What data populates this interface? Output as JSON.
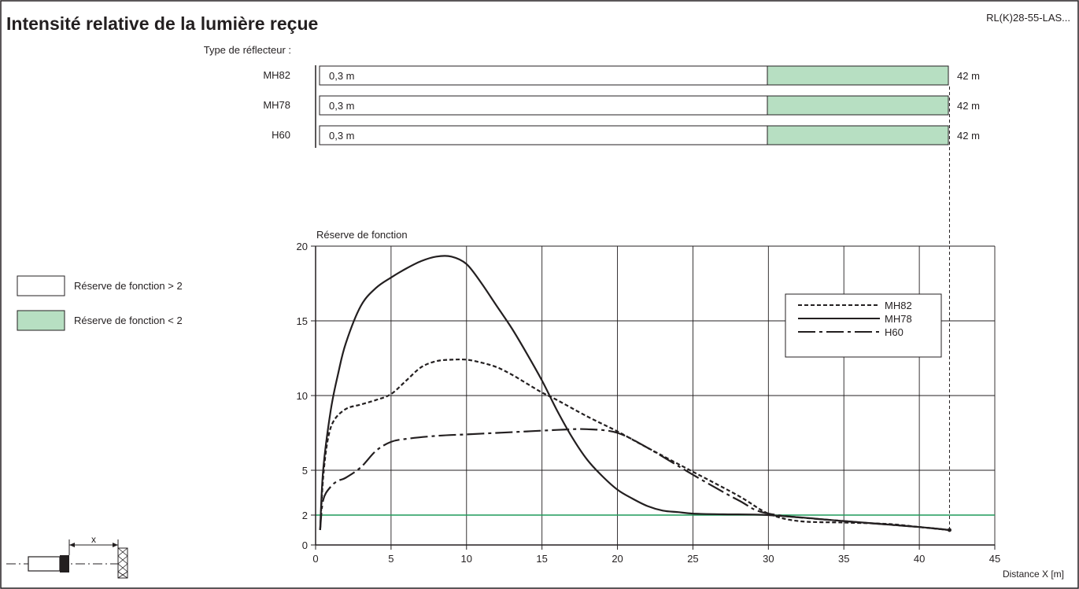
{
  "title": "Intensité relative de la lumière reçue",
  "model": "RL(K)28-55-LAS...",
  "reflector": {
    "label": "Type de réflecteur :",
    "rows": [
      {
        "name": "MH82",
        "start_label": "0,3 m",
        "end_label": "42 m",
        "green_from": 30,
        "end": 42
      },
      {
        "name": "MH78",
        "start_label": "0,3 m",
        "end_label": "42 m",
        "green_from": 30,
        "end": 42
      },
      {
        "name": "H60",
        "start_label": "0,3 m",
        "end_label": "42 m",
        "green_from": 30,
        "end": 42
      }
    ]
  },
  "legend_boxes": [
    {
      "label": "Réserve de fonction > 2",
      "color": "#ffffff"
    },
    {
      "label": "Réserve de fonction < 2",
      "color": "#b7dfc2"
    }
  ],
  "diagram": {
    "distance_label": "x"
  },
  "colors": {
    "green_fill": "#b7dfc2",
    "threshold_line": "#1f9a5a",
    "line": "#231f20"
  },
  "chart_data": {
    "type": "line",
    "ylabel": "Réserve de fonction",
    "xlabel": "Distance X [m]",
    "xlim": [
      0,
      45
    ],
    "ylim": [
      0,
      20
    ],
    "xticks": [
      0,
      5,
      10,
      15,
      20,
      25,
      30,
      35,
      40,
      45
    ],
    "yticks": [
      0,
      2,
      5,
      10,
      15,
      20
    ],
    "grid": true,
    "threshold": 2,
    "legend_position": "top-right",
    "max_range_marker": 42,
    "series": [
      {
        "name": "MH82",
        "style": "dashed",
        "x": [
          0.3,
          0.5,
          0.8,
          1.2,
          2,
          3,
          4,
          5,
          6,
          7,
          8,
          9,
          10,
          11,
          12,
          13,
          14,
          15,
          16,
          18,
          20,
          22,
          25,
          28,
          30,
          32,
          35,
          38,
          40,
          42
        ],
        "y": [
          1.0,
          4.5,
          7.0,
          8.3,
          9.1,
          9.4,
          9.7,
          10.1,
          11.0,
          11.9,
          12.3,
          12.4,
          12.4,
          12.2,
          11.9,
          11.4,
          10.8,
          10.2,
          9.7,
          8.6,
          7.6,
          6.5,
          4.9,
          3.3,
          2.1,
          1.6,
          1.5,
          1.4,
          1.2,
          1.0
        ]
      },
      {
        "name": "MH78",
        "style": "solid",
        "x": [
          0.3,
          0.5,
          1,
          1.5,
          2,
          3,
          4,
          5,
          6,
          7,
          8,
          9,
          10,
          11,
          12,
          13,
          14,
          15,
          16,
          17,
          18,
          19,
          20,
          21,
          22,
          23,
          24,
          25,
          27,
          30,
          35,
          40,
          42
        ],
        "y": [
          1.0,
          5.0,
          9.0,
          11.5,
          13.5,
          16.0,
          17.2,
          17.9,
          18.5,
          19.0,
          19.3,
          19.3,
          18.8,
          17.5,
          16.0,
          14.5,
          12.8,
          11.0,
          9.0,
          7.2,
          5.7,
          4.6,
          3.7,
          3.1,
          2.6,
          2.3,
          2.2,
          2.1,
          2.05,
          2.0,
          1.6,
          1.2,
          1.0
        ]
      },
      {
        "name": "H60",
        "style": "dashdot",
        "x": [
          0.3,
          0.5,
          1,
          1.5,
          2,
          3,
          4,
          5,
          6,
          8,
          10,
          12,
          14,
          16,
          18,
          20,
          22,
          25,
          28,
          30,
          35,
          40,
          42
        ],
        "y": [
          1.0,
          3.0,
          3.9,
          4.3,
          4.5,
          5.2,
          6.3,
          6.9,
          7.1,
          7.3,
          7.4,
          7.5,
          7.6,
          7.7,
          7.75,
          7.5,
          6.5,
          4.7,
          3.0,
          2.1,
          1.6,
          1.2,
          1.0
        ]
      }
    ]
  }
}
